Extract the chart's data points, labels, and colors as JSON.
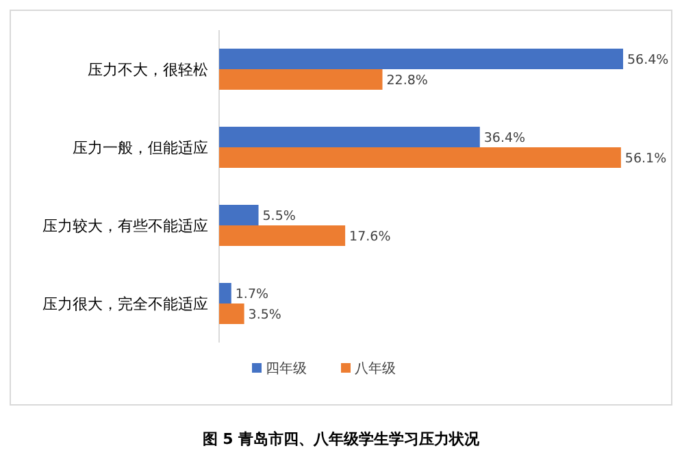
{
  "chart_data": {
    "type": "bar",
    "orientation": "horizontal",
    "title": "图 5 青岛市四、八年级学生学习压力状况",
    "categories": [
      "压力不大，很轻松",
      "压力一般，但能适应",
      "压力较大，有些不能适应",
      "压力很大，完全不能适应"
    ],
    "series": [
      {
        "name": "四年级",
        "color": "#4472c4",
        "values": [
          56.4,
          36.4,
          5.5,
          1.7
        ],
        "value_labels": [
          "56.4%",
          "36.4%",
          "5.5%",
          "1.7%"
        ]
      },
      {
        "name": "八年级",
        "color": "#ed7d31",
        "values": [
          22.8,
          56.1,
          17.6,
          3.5
        ],
        "value_labels": [
          "22.8%",
          "56.1%",
          "17.6%",
          "3.5%"
        ]
      }
    ],
    "legend": "bottom"
  }
}
